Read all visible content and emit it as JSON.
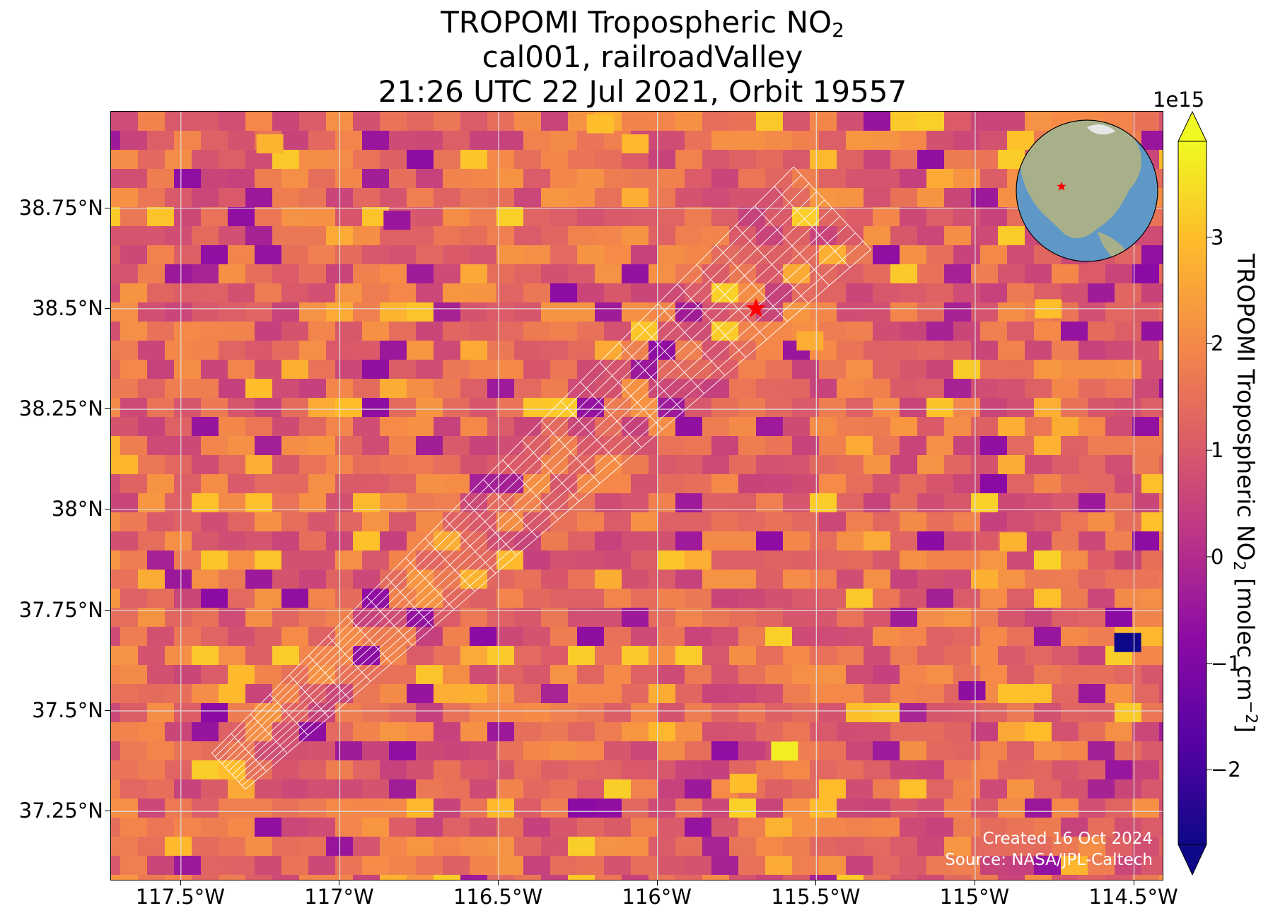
{
  "title": {
    "line1_prefix": "TROPOMI Tropospheric NO",
    "line1_sub": "2",
    "line2": "cal001, railroadValley",
    "line3": "21:26 UTC 22 Jul 2021, Orbit 19557"
  },
  "map": {
    "extent": {
      "lon_min": -117.72,
      "lon_max": -114.41,
      "lat_min": 37.08,
      "lat_max": 38.99
    },
    "lat_ticks": [
      {
        "value": 38.75,
        "label": "38.75°N"
      },
      {
        "value": 38.5,
        "label": "38.5°N"
      },
      {
        "value": 38.25,
        "label": "38.25°N"
      },
      {
        "value": 38.0,
        "label": "38°N"
      },
      {
        "value": 37.75,
        "label": "37.75°N"
      },
      {
        "value": 37.5,
        "label": "37.5°N"
      },
      {
        "value": 37.25,
        "label": "37.25°N"
      }
    ],
    "lon_ticks": [
      {
        "value": -117.5,
        "label": "117.5°W"
      },
      {
        "value": -117.0,
        "label": "117°W"
      },
      {
        "value": -116.5,
        "label": "116.5°W"
      },
      {
        "value": -116.0,
        "label": "116°W"
      },
      {
        "value": -115.5,
        "label": "115.5°W"
      },
      {
        "value": -115.0,
        "label": "115°W"
      },
      {
        "value": -114.5,
        "label": "114.5°W"
      }
    ],
    "site_marker": {
      "name": "railroadValley",
      "lon": -115.69,
      "lat": 38.5,
      "color": "#ff0000",
      "icon": "star-icon"
    },
    "swath_outline_color": "#ffffff",
    "inset_globe": {
      "marker_color": "#ff0000",
      "icon": "globe-icon"
    }
  },
  "credits": {
    "created": "Created 16 Oct 2024",
    "source": "Source: NASA/JPL-Caltech"
  },
  "colorbar": {
    "label_prefix": "TROPOMI Tropospheric NO",
    "label_sub": "2",
    "label_mid": " [molec cm",
    "label_sup": "−2",
    "label_suffix": "]",
    "exponent": "1e15",
    "colormap": "plasma",
    "range": [
      -2.7,
      3.9
    ],
    "extend": "both",
    "ticks": [
      {
        "value": 3,
        "label": "3"
      },
      {
        "value": 2,
        "label": "2"
      },
      {
        "value": 1,
        "label": "1"
      },
      {
        "value": 0,
        "label": "0"
      },
      {
        "value": -1,
        "label": "−1"
      },
      {
        "value": -2,
        "label": "−2"
      }
    ]
  },
  "chart_data": {
    "type": "heatmap",
    "title": "TROPOMI Tropospheric NO2 cal001, railroadValley 21:26 UTC 22 Jul 2021, Orbit 19557",
    "xlabel": "",
    "ylabel": "",
    "x_range": [
      -117.72,
      -114.41
    ],
    "y_range": [
      37.08,
      38.99
    ],
    "colorbar_label": "TROPOMI Tropospheric NO2 [molec cm−2]",
    "colorbar_scale": "1e15",
    "value_range": [
      -2.7,
      3.9
    ],
    "grid": true,
    "points": [
      {
        "name": "railroadValley",
        "lon": -115.69,
        "lat": 38.5
      }
    ],
    "swath": {
      "from": [
        -117.35,
        37.35
      ],
      "to": [
        -115.45,
        38.75
      ]
    }
  }
}
